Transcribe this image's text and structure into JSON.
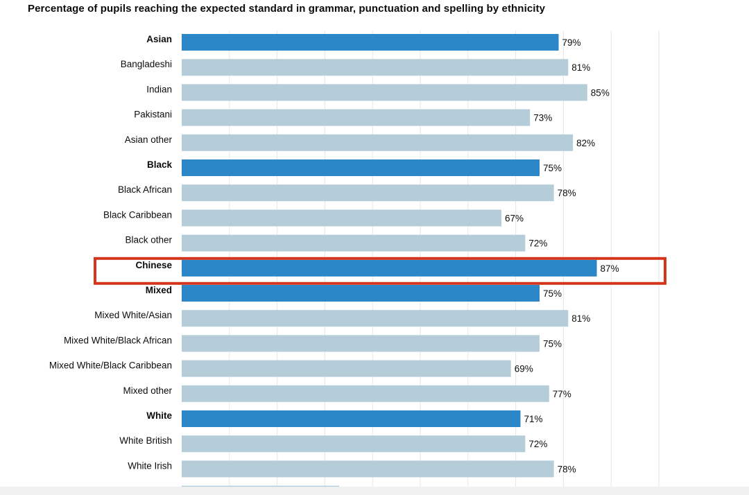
{
  "chart_data": {
    "type": "bar",
    "orientation": "horizontal",
    "title": "Percentage of pupils reaching the expected standard in grammar, punctuation and spelling by ethnicity",
    "xlim": [
      0,
      100
    ],
    "grid": true,
    "colors": {
      "group": "#2b87c8",
      "subgroup": "#b4cdd9",
      "highlight": "#d4351c"
    },
    "highlighted_category": "Chinese",
    "categories": [
      {
        "label": "Asian",
        "value": 79,
        "display": "79%",
        "group": true
      },
      {
        "label": "Bangladeshi",
        "value": 81,
        "display": "81%",
        "group": false
      },
      {
        "label": "Indian",
        "value": 85,
        "display": "85%",
        "group": false
      },
      {
        "label": "Pakistani",
        "value": 73,
        "display": "73%",
        "group": false
      },
      {
        "label": "Asian other",
        "value": 82,
        "display": "82%",
        "group": false
      },
      {
        "label": "Black",
        "value": 75,
        "display": "75%",
        "group": true
      },
      {
        "label": "Black African",
        "value": 78,
        "display": "78%",
        "group": false
      },
      {
        "label": "Black Caribbean",
        "value": 67,
        "display": "67%",
        "group": false
      },
      {
        "label": "Black other",
        "value": 72,
        "display": "72%",
        "group": false
      },
      {
        "label": "Chinese",
        "value": 87,
        "display": "87%",
        "group": true
      },
      {
        "label": "Mixed",
        "value": 75,
        "display": "75%",
        "group": true
      },
      {
        "label": "Mixed White/Asian",
        "value": 81,
        "display": "81%",
        "group": false
      },
      {
        "label": "Mixed White/Black African",
        "value": 75,
        "display": "75%",
        "group": false
      },
      {
        "label": "Mixed White/Black Caribbean",
        "value": 69,
        "display": "69%",
        "group": false
      },
      {
        "label": "Mixed other",
        "value": 77,
        "display": "77%",
        "group": false
      },
      {
        "label": "White",
        "value": 71,
        "display": "71%",
        "group": true
      },
      {
        "label": "White British",
        "value": 72,
        "display": "72%",
        "group": false
      },
      {
        "label": "White Irish",
        "value": 78,
        "display": "78%",
        "group": false
      },
      {
        "label": "",
        "value": 33,
        "display": "",
        "group": false
      }
    ]
  }
}
